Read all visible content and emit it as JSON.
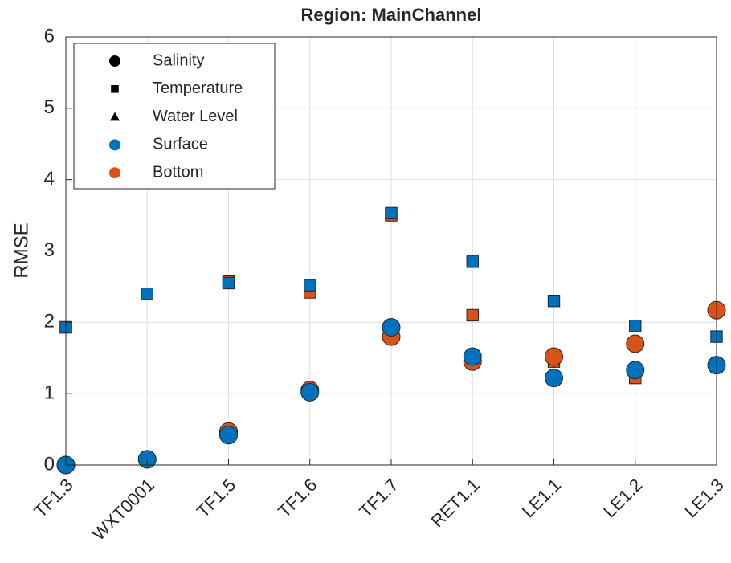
{
  "chart_data": {
    "type": "scatter",
    "title": "Region: MainChannel",
    "y_label": "RMSE",
    "categories": [
      "TF1.3",
      "WXT0001",
      "TF1.5",
      "TF1.6",
      "TF1.7",
      "RET1.1",
      "LE1.1",
      "LE1.2",
      "LE1.3"
    ],
    "ylim": [
      0,
      6
    ],
    "yticks": [
      0,
      1,
      2,
      3,
      4,
      5,
      6
    ],
    "grid": true,
    "legend_position": "upper left",
    "legend": {
      "markers": [
        {
          "label": "Salinity",
          "marker": "circle"
        },
        {
          "label": "Temperature",
          "marker": "square"
        },
        {
          "label": "Water Level",
          "marker": "triangle"
        }
      ],
      "colors": [
        {
          "label": "Surface",
          "color": "#0072bd"
        },
        {
          "label": "Bottom",
          "color": "#d95319"
        }
      ]
    },
    "series": [
      {
        "marker": "square",
        "color": "#d95319",
        "values": [
          1.93,
          2.4,
          2.57,
          2.42,
          3.5,
          2.1,
          1.45,
          1.22,
          1.37
        ]
      },
      {
        "marker": "square",
        "color": "#0072bd",
        "values": [
          1.93,
          2.4,
          2.55,
          2.52,
          3.53,
          2.85,
          2.3,
          1.95,
          1.8
        ]
      },
      {
        "marker": "circle",
        "color": "#d95319",
        "values": [
          0,
          0.08,
          0.47,
          1.05,
          1.8,
          1.45,
          1.52,
          1.7,
          2.17
        ]
      },
      {
        "marker": "circle",
        "color": "#0072bd",
        "values": [
          0,
          0.08,
          0.42,
          1.02,
          1.93,
          1.52,
          1.22,
          1.33,
          1.4
        ]
      }
    ]
  }
}
